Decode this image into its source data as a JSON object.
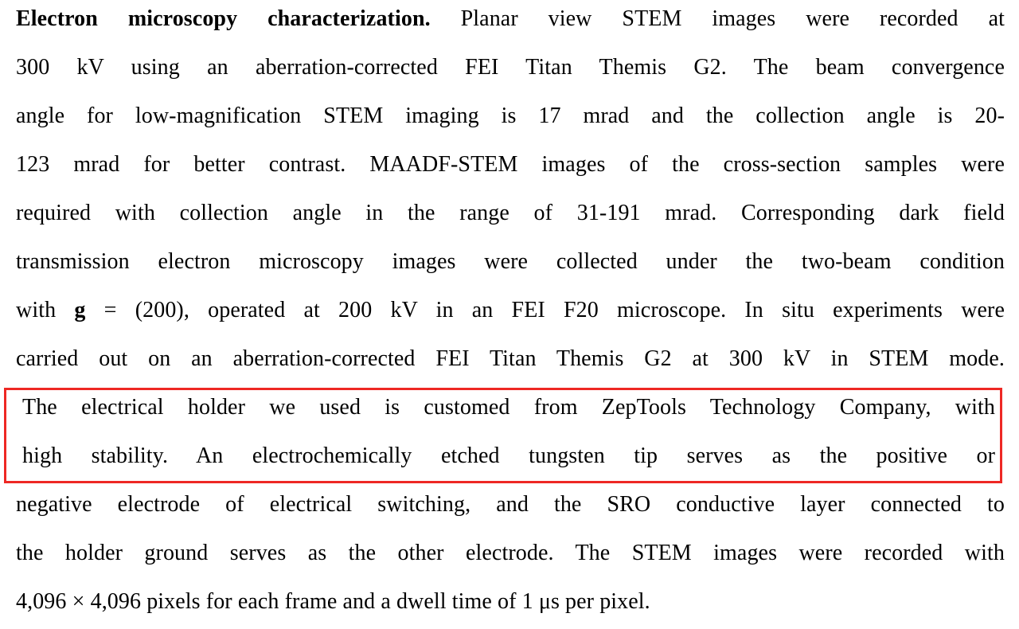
{
  "colors": {
    "highlight_border": "#ee2824",
    "text": "#000000",
    "background": "#ffffff"
  },
  "paragraph": {
    "heading": "Electron microscopy characterization.",
    "lines": [
      {
        "bold": "Electron microscopy characterization.",
        "text": " Planar view STEM images were recorded at"
      },
      {
        "text": "300 kV using an aberration-corrected FEI Titan Themis G2. The beam convergence"
      },
      {
        "text": "angle for low-magnification STEM imaging is 17 mrad and the collection angle is 20-"
      },
      {
        "text": "123 mrad for better contrast. MAADF-STEM images of the cross-section samples were"
      },
      {
        "text": "required with collection angle in the range of 31-191 mrad. Corresponding dark field"
      },
      {
        "text": "transmission electron microscopy images were collected under the two-beam condition"
      },
      {
        "pre": "with ",
        "bold": "g",
        "text": " = (200), operated at 200 kV in an FEI F20 microscope. In situ experiments were"
      },
      {
        "text": "carried out on an aberration-corrected FEI Titan Themis G2 at 300 kV in STEM mode."
      },
      {
        "text": "The electrical holder we used is customed from ZepTools Technology Company, with"
      },
      {
        "text": "high stability. An electrochemically etched tungsten tip serves as the positive or"
      },
      {
        "text": "negative electrode of electrical switching, and the SRO conductive layer connected to"
      },
      {
        "text": "the holder ground serves as the other electrode. The STEM images were recorded with"
      },
      {
        "text": "4,096 × 4,096 pixels for each frame and a dwell time of 1 μs per pixel."
      }
    ]
  }
}
